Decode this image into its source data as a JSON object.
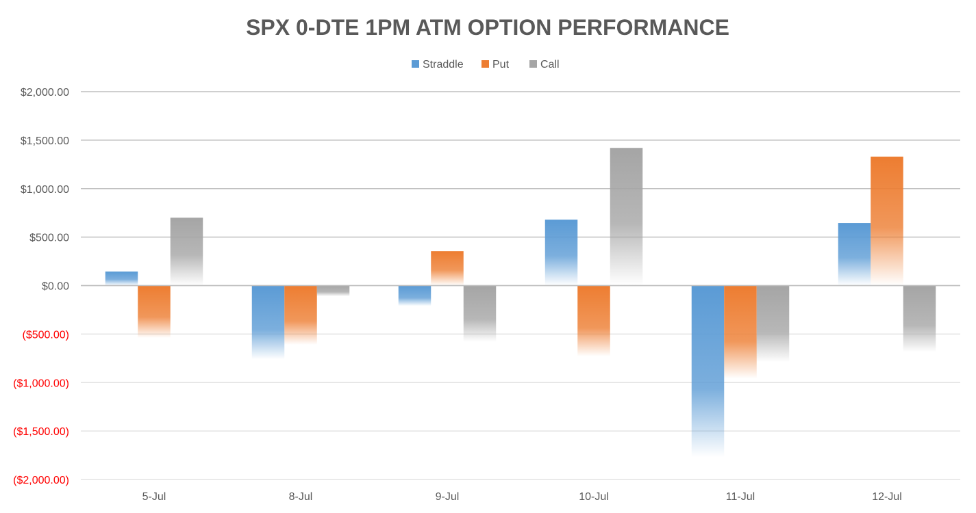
{
  "chart_data": {
    "type": "bar",
    "title": "SPX 0-DTE 1PM ATM OPTION PERFORMANCE",
    "categories": [
      "5-Jul",
      "8-Jul",
      "9-Jul",
      "10-Jul",
      "11-Jul",
      "12-Jul"
    ],
    "series": [
      {
        "name": "Straddle",
        "color": "#5b9bd5",
        "values": [
          145,
          -760,
          -210,
          680,
          -1770,
          645
        ]
      },
      {
        "name": "Put",
        "color": "#ed7d31",
        "values": [
          -540,
          -610,
          355,
          -730,
          -960,
          1330
        ]
      },
      {
        "name": "Call",
        "color": "#a5a5a5",
        "values": [
          700,
          -110,
          -580,
          1420,
          -790,
          -685
        ]
      }
    ],
    "ylim": [
      -2000,
      2000
    ],
    "yticks": [
      {
        "value": 2000,
        "label": "$2,000.00"
      },
      {
        "value": 1500,
        "label": "$1,500.00"
      },
      {
        "value": 1000,
        "label": "$1,000.00"
      },
      {
        "value": 500,
        "label": "$500.00"
      },
      {
        "value": 0,
        "label": "$0.00"
      },
      {
        "value": -500,
        "label": "($500.00)"
      },
      {
        "value": -1000,
        "label": "($1,000.00)"
      },
      {
        "value": -1500,
        "label": "($1,500.00)"
      },
      {
        "value": -2000,
        "label": "($2,000.00)"
      }
    ],
    "negative_label_color": "#ff0000",
    "positive_label_color": "#595959",
    "gridlines": true,
    "legend_position": "top-center",
    "bar_style": "gradient-fade"
  }
}
